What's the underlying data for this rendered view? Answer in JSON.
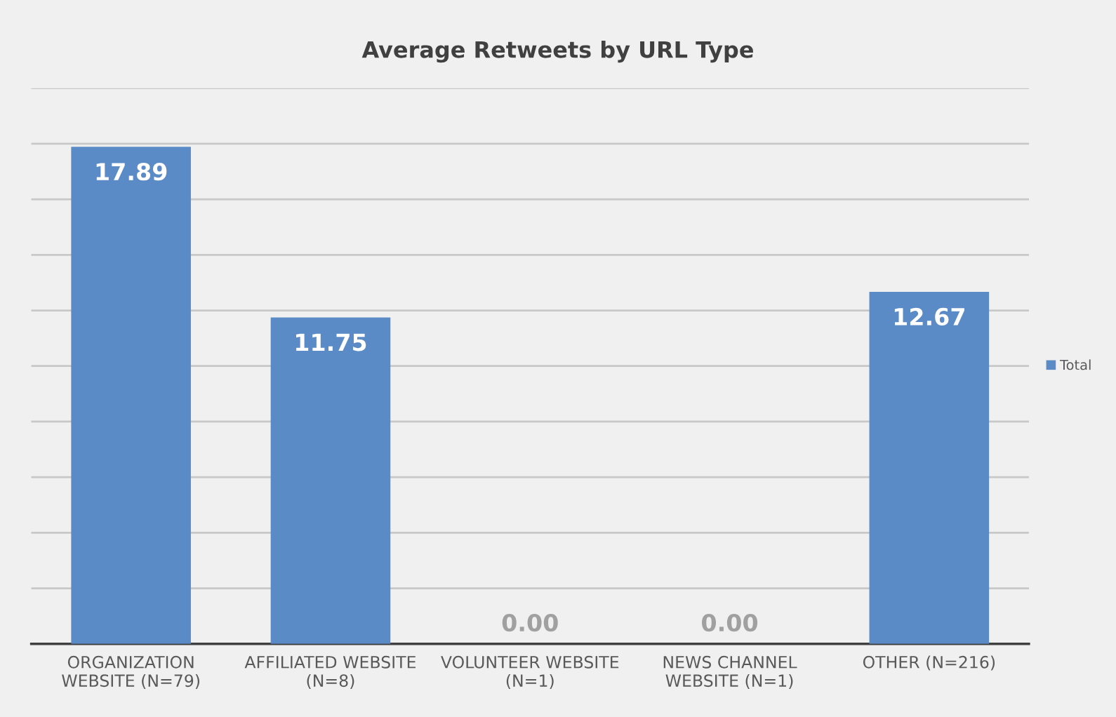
{
  "chart_data": {
    "type": "bar",
    "title": "Average Retweets by URL Type",
    "categories": [
      "ORGANIZATION\nWEBSITE (N=79)",
      "AFFILIATED WEBSITE\n(N=8)",
      "VOLUNTEER WEBSITE\n(N=1)",
      "NEWS CHANNEL\nWEBSITE (N=1)",
      "OTHER (N=216)"
    ],
    "series": [
      {
        "name": "Total",
        "color": "#5b8bc6",
        "values": [
          17.89,
          11.75,
          0.0,
          0.0,
          12.67
        ],
        "value_labels": [
          "17.89",
          "11.75",
          "0.00",
          "0.00",
          "12.67"
        ]
      }
    ],
    "ylim": [
      0,
      20
    ],
    "yticks": [
      {
        "value": 0,
        "label": null
      },
      {
        "value": 2,
        "label": null
      },
      {
        "value": 4,
        "label": null
      },
      {
        "value": 6,
        "label": null
      },
      {
        "value": 8,
        "label": null
      },
      {
        "value": 10,
        "label": null
      },
      {
        "value": 12,
        "label": null
      },
      {
        "value": 14,
        "label": null
      },
      {
        "value": 16,
        "label": null
      },
      {
        "value": 18,
        "label": null
      },
      {
        "value": 20,
        "label": null
      }
    ],
    "tick_labels": "x",
    "grid": "y",
    "legend": "right"
  }
}
